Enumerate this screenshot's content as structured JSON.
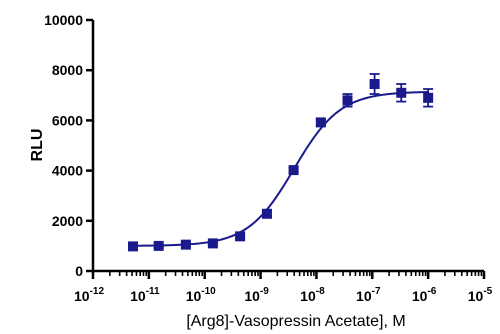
{
  "chart_data": {
    "type": "scatter",
    "title": "",
    "xlabel": "[Arg8]-Vasopressin Acetate], M",
    "ylabel": "RLU",
    "xscale": "log",
    "xlim": [
      1e-12,
      1e-05
    ],
    "ylim": [
      0,
      10000
    ],
    "grid": false,
    "legend": "none",
    "color": "#1a1a8c",
    "x_tick_labels": [
      {
        "base": "10",
        "exp": "-12",
        "value": 1e-12
      },
      {
        "base": "10",
        "exp": "-11",
        "value": 1e-11
      },
      {
        "base": "10",
        "exp": "-10",
        "value": 1e-10
      },
      {
        "base": "10",
        "exp": "-9",
        "value": 1e-09
      },
      {
        "base": "10",
        "exp": "-8",
        "value": 1e-08
      },
      {
        "base": "10",
        "exp": "-7",
        "value": 1e-07
      },
      {
        "base": "10",
        "exp": "-6",
        "value": 1e-06
      },
      {
        "base": "10",
        "exp": "-5",
        "value": 1e-05
      }
    ],
    "y_tick_labels": [
      "0",
      "2000",
      "4000",
      "6000",
      "8000",
      "10000"
    ],
    "y_ticks": [
      0,
      2000,
      4000,
      6000,
      8000,
      10000
    ],
    "series": [
      {
        "x": [
          5.2e-12,
          1.5e-11,
          4.6e-11,
          1.4e-10,
          4.3e-10,
          1.3e-09,
          3.9e-09,
          1.2e-08,
          3.6e-08,
          1.1e-07,
          3.3e-07,
          1e-06
        ],
        "y": [
          980,
          1000,
          1050,
          1100,
          1380,
          2280,
          4020,
          5920,
          6800,
          7450,
          7100,
          6900
        ],
        "error": [
          60,
          60,
          60,
          60,
          80,
          100,
          100,
          120,
          250,
          400,
          350,
          350
        ]
      }
    ],
    "fit": {
      "type": "sigmoidal dose-response",
      "bottom": 1000,
      "top": 7150,
      "log_ec50": -8.4,
      "hill": 1.05
    }
  }
}
